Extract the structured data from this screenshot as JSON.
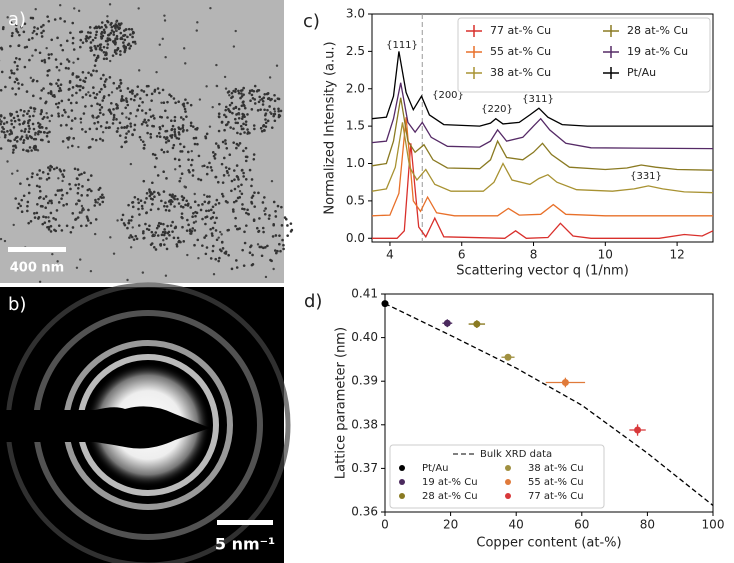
{
  "panels": [
    {
      "label": "a)",
      "scale_bar": "400 nm"
    },
    {
      "label": "b)",
      "scale_bar": "5 nm⁻¹"
    }
  ],
  "chart_data": [
    {
      "type": "line",
      "panel_label": "c)",
      "xlabel": "Scattering vector q (1/nm)",
      "ylabel": "Normalized Intensity (a.u.)",
      "xlim": [
        3.5,
        13
      ],
      "ylim": [
        -0.05,
        3.0
      ],
      "xticks": [
        4,
        6,
        8,
        10,
        12
      ],
      "yticks": [
        {
          "value": 0,
          "label": "0.0"
        },
        0.5,
        {
          "value": 1,
          "label": "1.0"
        },
        1.5,
        {
          "value": 2,
          "label": "2.0"
        },
        2.5,
        {
          "value": 3,
          "label": "3.0"
        }
      ],
      "reference_line_x": 4.9,
      "legend": "upper right",
      "annotations": [
        "{111}",
        "{200}",
        "{220}",
        "{311}",
        "{331}"
      ],
      "series": [
        {
          "name": "77 at-% Cu",
          "color": "#d9302c",
          "x": [
            3.5,
            4.2,
            4.4,
            4.58,
            4.8,
            5.0,
            5.25,
            5.5,
            7.2,
            7.5,
            7.8,
            8.4,
            8.75,
            9.1,
            9.6,
            11.5,
            12.2,
            12.7,
            13
          ],
          "values": [
            0,
            0,
            0.1,
            1.27,
            0.15,
            0.02,
            0.27,
            0.02,
            0,
            0.1,
            0,
            0.01,
            0.2,
            0.03,
            0,
            0,
            0.05,
            0.03,
            0.1
          ]
        },
        {
          "name": "55 at-% Cu",
          "color": "#e8702a",
          "x": [
            3.5,
            4.0,
            4.25,
            4.45,
            4.65,
            4.85,
            5.05,
            5.3,
            5.8,
            7.0,
            7.3,
            7.6,
            8.2,
            8.55,
            8.9,
            10,
            13
          ],
          "values": [
            0.3,
            0.31,
            0.6,
            1.62,
            0.5,
            0.36,
            0.55,
            0.34,
            0.3,
            0.3,
            0.4,
            0.31,
            0.32,
            0.45,
            0.32,
            0.3,
            0.3
          ]
        },
        {
          "name": "38 at-% Cu",
          "color": "#a89232",
          "x": [
            3.5,
            3.9,
            4.15,
            4.35,
            4.55,
            4.75,
            5.0,
            5.25,
            5.7,
            6.6,
            6.9,
            7.15,
            7.4,
            7.9,
            8.15,
            8.4,
            8.65,
            9.2,
            10.2,
            10.8,
            11.2,
            11.6,
            12.2,
            13
          ],
          "values": [
            0.63,
            0.66,
            0.95,
            1.55,
            0.95,
            0.78,
            0.92,
            0.72,
            0.63,
            0.63,
            0.75,
            1.0,
            0.78,
            0.72,
            0.8,
            0.85,
            0.75,
            0.65,
            0.63,
            0.66,
            0.7,
            0.66,
            0.62,
            0.61
          ]
        },
        {
          "name": "28 at-% Cu",
          "color": "#8a7a22",
          "x": [
            3.5,
            3.9,
            4.1,
            4.3,
            4.5,
            4.7,
            4.95,
            5.2,
            5.6,
            6.5,
            6.8,
            7.0,
            7.25,
            7.7,
            8.0,
            8.25,
            8.5,
            9.0,
            10.0,
            10.6,
            11.0,
            11.4,
            12,
            13
          ],
          "values": [
            0.97,
            1.0,
            1.3,
            1.88,
            1.3,
            1.15,
            1.25,
            1.05,
            0.94,
            0.93,
            1.05,
            1.3,
            1.08,
            1.05,
            1.15,
            1.27,
            1.12,
            0.95,
            0.92,
            0.94,
            0.98,
            0.95,
            0.92,
            0.91
          ]
        },
        {
          "name": "19 at-% Cu",
          "color": "#552a66",
          "x": [
            3.5,
            3.9,
            4.1,
            4.3,
            4.5,
            4.7,
            4.9,
            5.15,
            5.6,
            6.5,
            6.8,
            7.0,
            7.25,
            7.7,
            8.0,
            8.2,
            8.45,
            8.9,
            9.6,
            13
          ],
          "values": [
            1.28,
            1.3,
            1.6,
            2.08,
            1.55,
            1.42,
            1.55,
            1.35,
            1.23,
            1.22,
            1.3,
            1.45,
            1.3,
            1.35,
            1.5,
            1.6,
            1.45,
            1.27,
            1.21,
            1.2
          ]
        },
        {
          "name": "Pt/Au",
          "color": "#000000",
          "x": [
            3.5,
            3.9,
            4.1,
            4.25,
            4.45,
            4.65,
            4.88,
            5.1,
            5.5,
            6.5,
            6.8,
            6.95,
            7.15,
            7.6,
            7.9,
            8.15,
            8.4,
            8.8,
            9.5,
            13
          ],
          "values": [
            1.6,
            1.62,
            1.9,
            2.5,
            1.95,
            1.72,
            1.9,
            1.65,
            1.52,
            1.5,
            1.54,
            1.6,
            1.53,
            1.55,
            1.65,
            1.74,
            1.62,
            1.52,
            1.5,
            1.5
          ]
        }
      ]
    },
    {
      "type": "scatter",
      "panel_label": "d)",
      "xlabel": "Copper content (at-%)",
      "ylabel": "Lattice parameter (nm)",
      "xlim": [
        0,
        100
      ],
      "ylim": [
        0.36,
        0.41
      ],
      "xticks": [
        0,
        20,
        40,
        60,
        80,
        100
      ],
      "yticks": [
        0.36,
        0.37,
        0.38,
        0.39,
        {
          "value": 0.4,
          "label": "0.40"
        },
        0.41
      ],
      "legend": "lower left",
      "line_series": {
        "name": "Bulk XRD data",
        "color": "#000000",
        "line_style": "dashed",
        "x": [
          0,
          20,
          40,
          60,
          80,
          100
        ],
        "values": [
          0.4078,
          0.4005,
          0.393,
          0.3845,
          0.3735,
          0.3615
        ]
      },
      "series": [
        {
          "name": "Pt/Au",
          "color": "#000000",
          "x": [
            0
          ],
          "values": [
            0.4078
          ],
          "x_err": [
            0.5
          ],
          "y_err": [
            0.0002
          ]
        },
        {
          "name": "19 at-% Cu",
          "color": "#4b2a5e",
          "x": [
            19
          ],
          "values": [
            0.4033
          ],
          "x_err": [
            1.5
          ],
          "y_err": [
            0.0009
          ]
        },
        {
          "name": "28 at-% Cu",
          "color": "#8a7a22",
          "x": [
            28
          ],
          "values": [
            0.4031
          ],
          "x_err": [
            2.5
          ],
          "y_err": [
            0.0009
          ]
        },
        {
          "name": "38 at-% Cu",
          "color": "#a09040",
          "x": [
            37.5
          ],
          "values": [
            0.3955
          ],
          "x_err": [
            2
          ],
          "y_err": [
            0.0006
          ]
        },
        {
          "name": "55 at-% Cu",
          "color": "#e07a3a",
          "x": [
            55
          ],
          "values": [
            0.3897
          ],
          "x_err": [
            6
          ],
          "y_err": [
            0.0011
          ]
        },
        {
          "name": "77 at-% Cu",
          "color": "#d8383a",
          "x": [
            77
          ],
          "values": [
            0.3788
          ],
          "x_err": [
            2.5
          ],
          "y_err": [
            0.0013
          ]
        }
      ]
    }
  ]
}
